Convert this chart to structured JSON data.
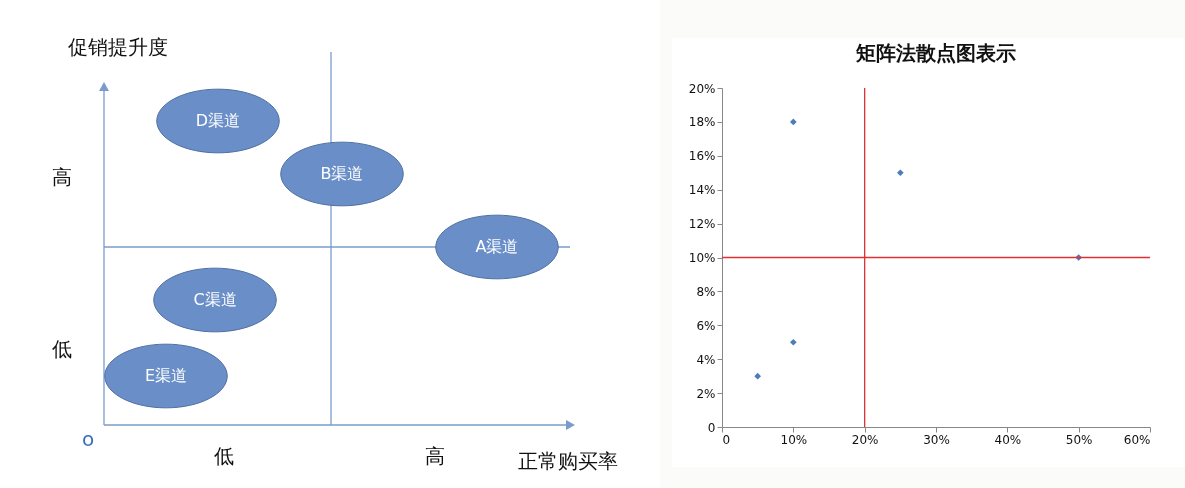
{
  "chart_data": [
    {
      "type": "other",
      "xlabel": "正常购买率",
      "ylabel": "促销提升度",
      "categories": [
        "D渠道",
        "B渠道",
        "A渠道",
        "C渠道",
        "E渠道"
      ],
      "color": "#6a8fc8",
      "annotations": [
        "高",
        "低",
        "低",
        "高",
        "o"
      ]
    },
    {
      "type": "scatter",
      "title": "矩阵法散点图表示",
      "x": [
        5,
        10,
        10,
        25,
        50
      ],
      "series": [
        {
          "color": "#4a7ebb",
          "values": [
            3,
            5,
            18,
            15,
            10
          ]
        }
      ],
      "marker": "diamond",
      "grid": false,
      "xlim": [
        0,
        60
      ],
      "xticks": [
        0,
        {
          "value": 10,
          "label": "10%"
        },
        {
          "value": 20,
          "label": "20%"
        },
        {
          "value": 30,
          "label": "30%"
        },
        {
          "value": 40,
          "label": "40%"
        },
        {
          "value": 50,
          "label": "50%"
        },
        {
          "value": 60,
          "label": "60%"
        }
      ],
      "ylim": [
        0,
        20
      ],
      "yticks": [
        0,
        {
          "value": 2,
          "label": "2%"
        },
        {
          "value": 4,
          "label": "4%"
        },
        {
          "value": 6,
          "label": "6%"
        },
        {
          "value": 8,
          "label": "8%"
        },
        {
          "value": 10,
          "label": "10%"
        },
        {
          "value": 12,
          "label": "12%"
        },
        {
          "value": 14,
          "label": "14%"
        },
        {
          "value": 16,
          "label": "16%"
        },
        {
          "value": 18,
          "label": "18%"
        },
        {
          "value": 20,
          "label": "20%"
        }
      ],
      "ref_lines": [
        {
          "axis": "x",
          "value": 20,
          "color": "#e03030"
        },
        {
          "axis": "y",
          "value": 10,
          "color": "#e03030"
        }
      ]
    }
  ]
}
